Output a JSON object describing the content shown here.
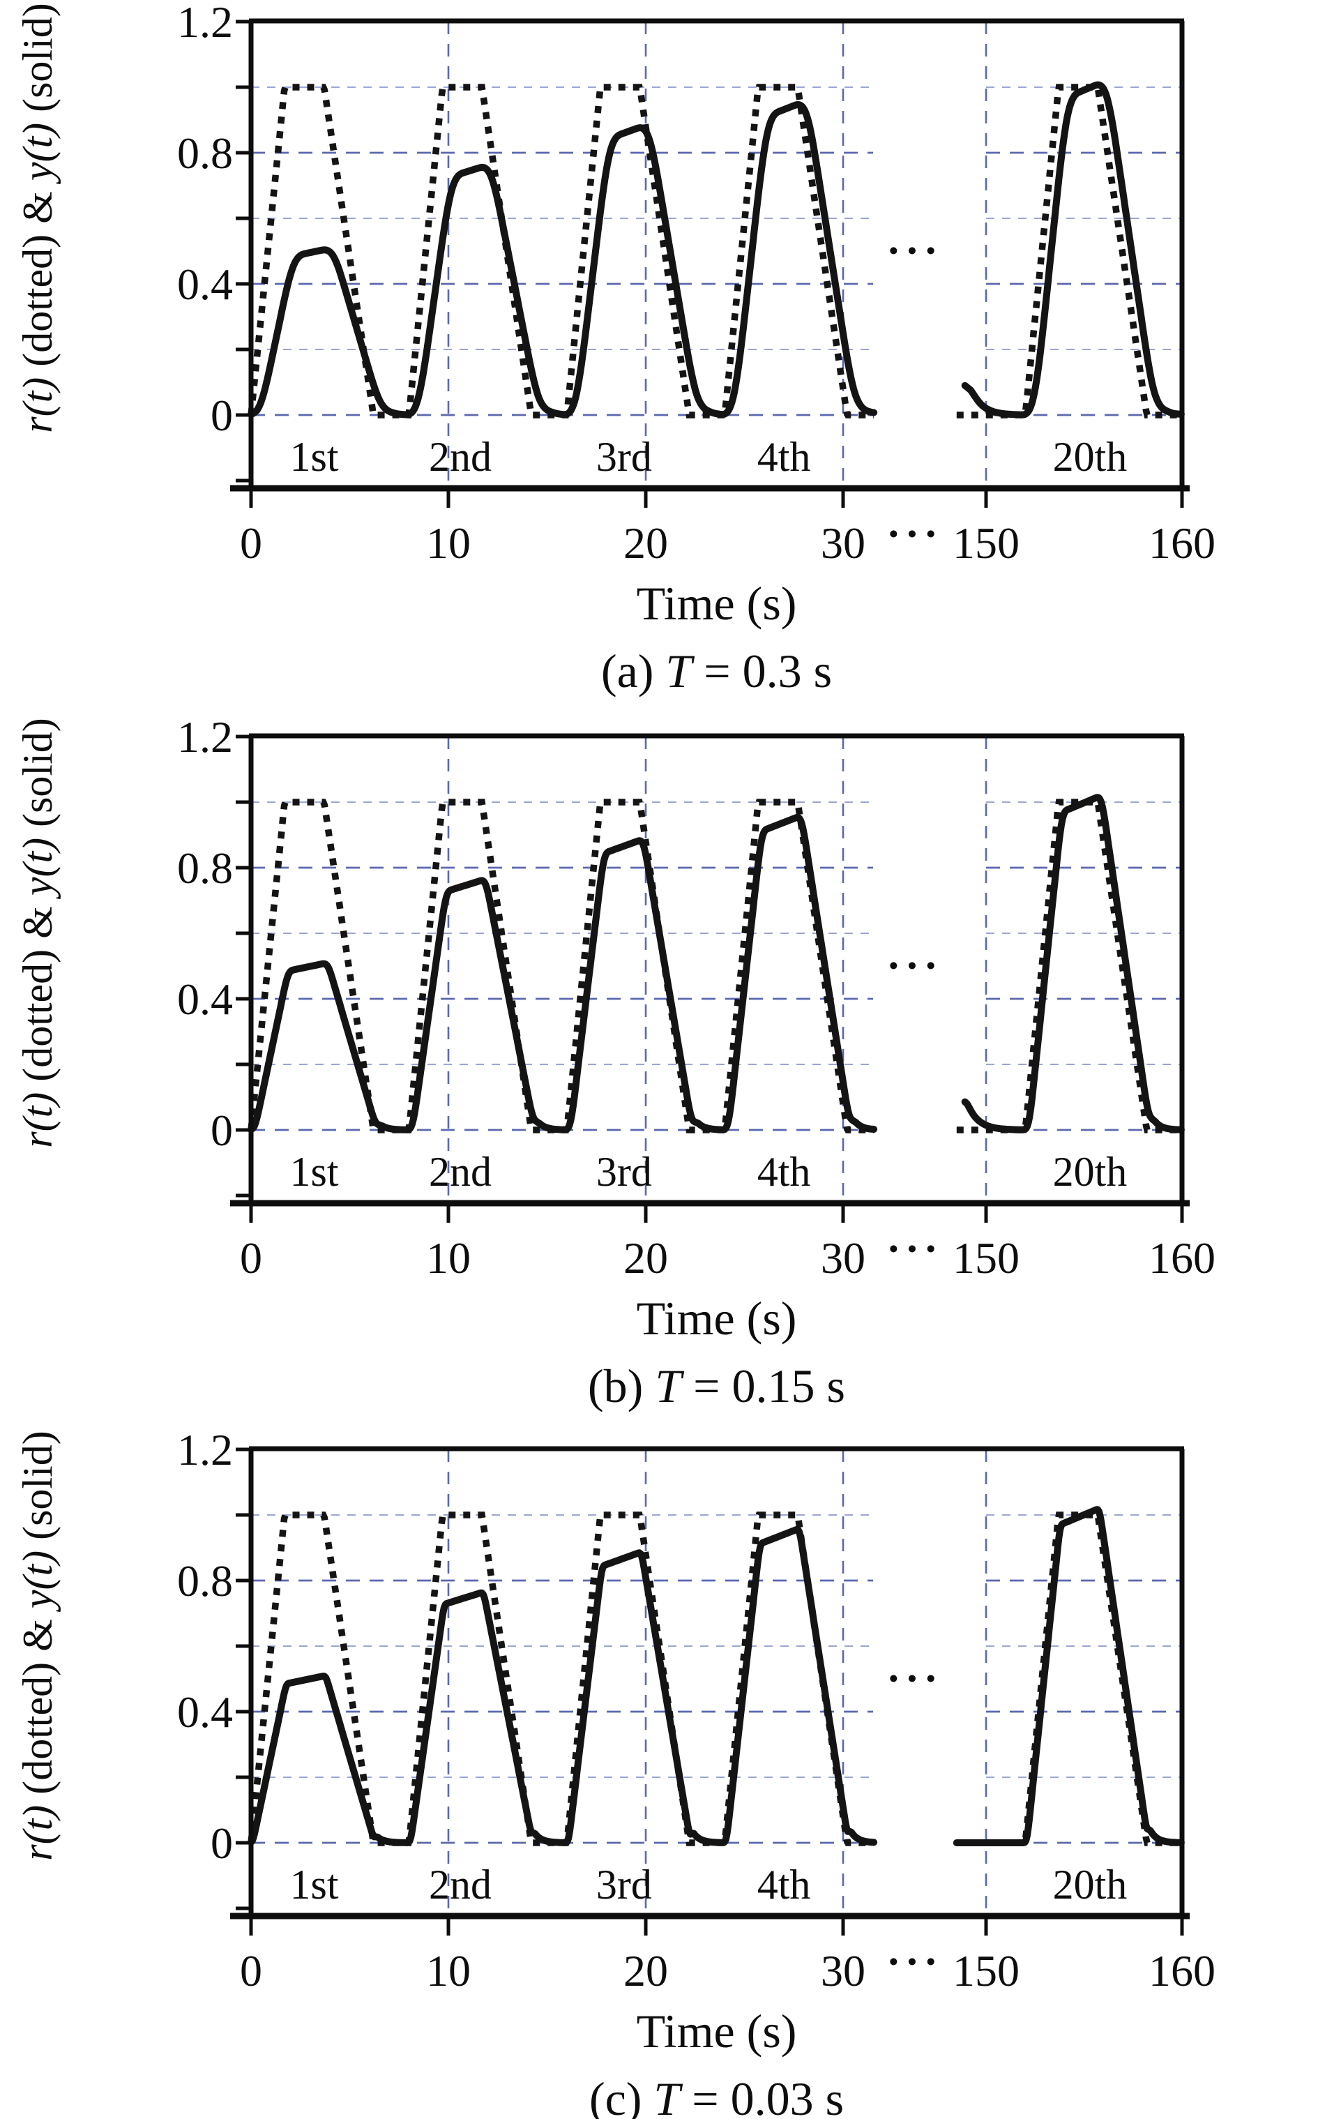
{
  "figure": {
    "background": "#ffffff",
    "text_color": "#0d0d0d",
    "curve_color": "#141414",
    "grid_major_color": "#5a68b0",
    "grid_minor_color": "#8e99cc",
    "xlabel": "Time (s)",
    "ylabel_parts": {
      "r": "r(t)",
      "mid": " (dotted) & ",
      "y": "y(t)",
      "tail": " (solid)"
    },
    "y_tick_labels": [
      "0",
      "0.4",
      "0.8",
      "1.2"
    ],
    "x_tick_labels": [
      "0",
      "10",
      "20",
      "30",
      "150",
      "160"
    ],
    "x_break_label": "···",
    "plot_break_label": "···",
    "trial_labels": [
      "1st",
      "2nd",
      "3rd",
      "4th",
      "20th"
    ],
    "subplots": [
      {
        "id": "a",
        "caption_prefix": "(a) ",
        "caption_var": "T",
        "caption_value": " = 0.3 s"
      },
      {
        "id": "b",
        "caption_prefix": "(b) ",
        "caption_var": "T",
        "caption_value": " = 0.15 s"
      },
      {
        "id": "c",
        "caption_prefix": "(c) ",
        "caption_var": "T",
        "caption_value": " = 0.03 s"
      }
    ]
  },
  "chart_data": {
    "type": "line",
    "title": "",
    "xlabel": "Time (s)",
    "ylabel": "r(t) (dotted) & y(t) (solid)",
    "grid": true,
    "ylim": [
      -0.22,
      1.2
    ],
    "y_ticks_labeled": [
      0,
      0.4,
      0.8,
      1.2
    ],
    "y_ticks_minor": [
      0.2,
      0.6,
      1.0
    ],
    "x_ticks": [
      0,
      10,
      20,
      30,
      150,
      160
    ],
    "x_break_between": [
      30,
      150
    ],
    "x_segments_shown": [
      [
        0,
        31.6
      ],
      [
        148.5,
        160
      ]
    ],
    "gridlines": {
      "vertical_at": [
        10,
        20,
        30,
        150
      ],
      "horizontal_at": [
        0,
        0.2,
        0.4,
        0.6,
        0.8,
        1.0
      ]
    },
    "reference": {
      "name": "r(t)",
      "style": "dotted",
      "amplitude": 1.0,
      "period_s": 8,
      "rise_s": 1.7,
      "plateau_s": 2.0,
      "fall_s": 2.5,
      "trial_starts_s": [
        0,
        8,
        16,
        24,
        152
      ]
    },
    "trials": [
      {
        "label": "1st",
        "start_s": 0,
        "output_peak": 0.5,
        "label_t_s": 3.2
      },
      {
        "label": "2nd",
        "start_s": 8,
        "output_peak": 0.75,
        "label_t_s": 10.6
      },
      {
        "label": "3rd",
        "start_s": 16,
        "output_peak": 0.87,
        "label_t_s": 18.9
      },
      {
        "label": "4th",
        "start_s": 24,
        "output_peak": 0.94,
        "label_t_s": 27.0
      },
      {
        "label": "20th",
        "start_s": 152,
        "output_peak": 1.0,
        "label_t_s": 155.3
      }
    ],
    "output_model": {
      "plateau_start_frac": 0.97,
      "plateau_end_frac": 1.02,
      "settle_tail_amp": 0.05,
      "settle_tail_tau_s": 0.35,
      "restart_time_s": 148.92,
      "restart_tau_s": 0.55
    },
    "subplots": [
      {
        "caption": "(a) T = 0.3 s",
        "sampling_period_s": 0.3,
        "output_lag_s": 0.45,
        "restart_transient": 0.13
      },
      {
        "caption": "(b) T = 0.15 s",
        "sampling_period_s": 0.15,
        "output_lag_s": 0.18,
        "restart_transient": 0.1
      },
      {
        "caption": "(c) T = 0.03 s",
        "sampling_period_s": 0.03,
        "output_lag_s": 0.08,
        "restart_transient": 0.0
      }
    ]
  }
}
